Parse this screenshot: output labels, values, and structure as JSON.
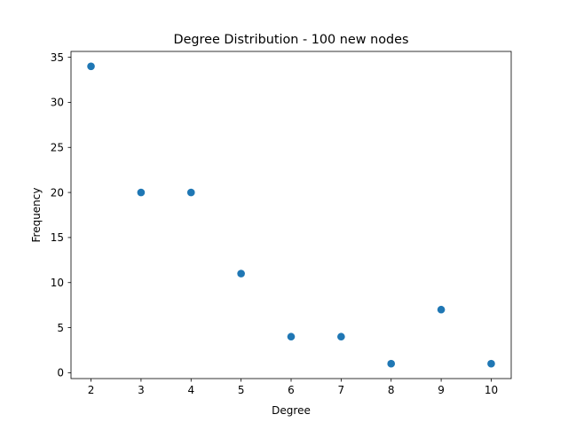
{
  "chart_data": {
    "type": "scatter",
    "title": "Degree Distribution - 100 new nodes",
    "xlabel": "Degree",
    "ylabel": "Frequency",
    "x": [
      2,
      3,
      4,
      5,
      6,
      7,
      8,
      9,
      10
    ],
    "y": [
      34,
      20,
      20,
      11,
      4,
      4,
      1,
      7,
      1
    ],
    "xlim": [
      1.6,
      10.4
    ],
    "ylim": [
      -0.65,
      35.65
    ],
    "xticks": [
      "2",
      "3",
      "4",
      "5",
      "6",
      "7",
      "8",
      "9",
      "10"
    ],
    "yticks": [
      "0",
      "5",
      "10",
      "15",
      "20",
      "25",
      "30",
      "35"
    ],
    "grid": false,
    "color": "#1f77b4"
  }
}
